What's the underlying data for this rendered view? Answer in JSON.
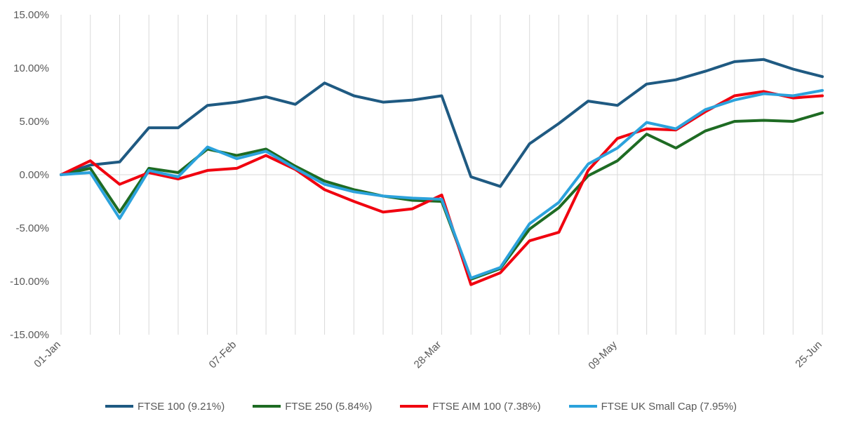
{
  "chart_data": {
    "type": "line",
    "title": "",
    "xlabel": "",
    "ylabel": "",
    "ylim": [
      -15,
      15
    ],
    "y_ticks": [
      15,
      10,
      5,
      0,
      -5,
      -10,
      -15
    ],
    "y_tick_labels": [
      "15.00%",
      "10.00%",
      "5.00%",
      "0.00%",
      "-5.00%",
      "-10.00%",
      "-15.00%"
    ],
    "x_tick_labels": [
      {
        "label": "01-Jan",
        "index": 0
      },
      {
        "label": "07-Feb",
        "index": 6
      },
      {
        "label": "28-Mar",
        "index": 13
      },
      {
        "label": "09-May",
        "index": 19
      },
      {
        "label": "25-Jun",
        "index": 26
      }
    ],
    "grid": "vertical",
    "legend_position": "bottom",
    "series": [
      {
        "name": "FTSE 100 (9.21%)",
        "color": "#1f5a82",
        "values": [
          0,
          0.9,
          1.2,
          4.4,
          4.4,
          6.5,
          6.8,
          7.3,
          6.6,
          8.6,
          7.4,
          6.8,
          7.0,
          7.4,
          -0.2,
          -1.1,
          2.9,
          4.8,
          6.9,
          6.5,
          8.5,
          8.9,
          9.7,
          10.6,
          10.8,
          9.9,
          9.2
        ]
      },
      {
        "name": "FTSE 250 (5.84%)",
        "color": "#1e6b23",
        "values": [
          0,
          0.6,
          -3.5,
          0.6,
          0.2,
          2.4,
          1.8,
          2.4,
          0.8,
          -0.6,
          -1.4,
          -2.0,
          -2.4,
          -2.5,
          -9.8,
          -8.8,
          -5.1,
          -3.1,
          -0.1,
          1.3,
          3.8,
          2.5,
          4.1,
          5.0,
          5.1,
          5.0,
          5.8
        ]
      },
      {
        "name": "FTSE AIM 100 (7.38%)",
        "color": "#f0000f",
        "values": [
          0,
          1.3,
          -0.9,
          0.2,
          -0.4,
          0.4,
          0.6,
          1.8,
          0.5,
          -1.4,
          -2.5,
          -3.5,
          -3.2,
          -1.9,
          -10.3,
          -9.2,
          -6.2,
          -5.4,
          0.4,
          3.4,
          4.3,
          4.2,
          5.9,
          7.4,
          7.8,
          7.2,
          7.4
        ]
      },
      {
        "name": "FTSE UK Small Cap (7.95%)",
        "color": "#2ba2dc",
        "values": [
          0,
          0.2,
          -4.1,
          0.4,
          -0.2,
          2.6,
          1.5,
          2.2,
          0.6,
          -0.9,
          -1.6,
          -2.0,
          -2.2,
          -2.3,
          -9.7,
          -8.7,
          -4.6,
          -2.6,
          1.0,
          2.5,
          4.9,
          4.3,
          6.1,
          7.0,
          7.6,
          7.4,
          7.9
        ]
      }
    ]
  }
}
